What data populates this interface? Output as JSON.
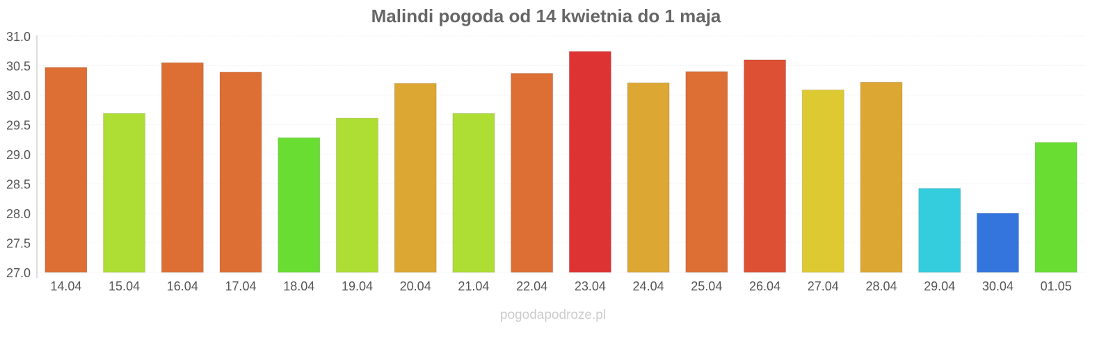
{
  "chart_data": {
    "type": "bar",
    "title": "Malindi pogoda od 14 kwietnia do 1 maja",
    "xlabel": "",
    "ylabel": "",
    "ylim": [
      27.0,
      31.0
    ],
    "yticks": [
      "27.0",
      "27.5",
      "28.0",
      "28.5",
      "29.0",
      "29.5",
      "30.0",
      "30.5",
      "31.0"
    ],
    "grid": true,
    "categories": [
      "14.04",
      "15.04",
      "16.04",
      "17.04",
      "18.04",
      "19.04",
      "20.04",
      "21.04",
      "22.04",
      "23.04",
      "24.04",
      "25.04",
      "26.04",
      "27.04",
      "28.04",
      "29.04",
      "30.04",
      "01.05"
    ],
    "values": [
      30.47,
      29.69,
      30.55,
      30.39,
      29.28,
      29.61,
      30.2,
      29.69,
      30.37,
      30.74,
      30.21,
      30.4,
      30.6,
      30.09,
      30.22,
      28.42,
      28.0,
      29.2
    ],
    "colors": [
      "#dd6e34",
      "#aedd33",
      "#dd6e34",
      "#dd6e34",
      "#6add33",
      "#aedd33",
      "#dda733",
      "#aedd33",
      "#dd6e34",
      "#dd3333",
      "#dda733",
      "#dd6e34",
      "#dd5034",
      "#ddca33",
      "#dda733",
      "#33cddd",
      "#3375dd",
      "#6add33"
    ],
    "watermark": "pogodapodroze.pl"
  }
}
